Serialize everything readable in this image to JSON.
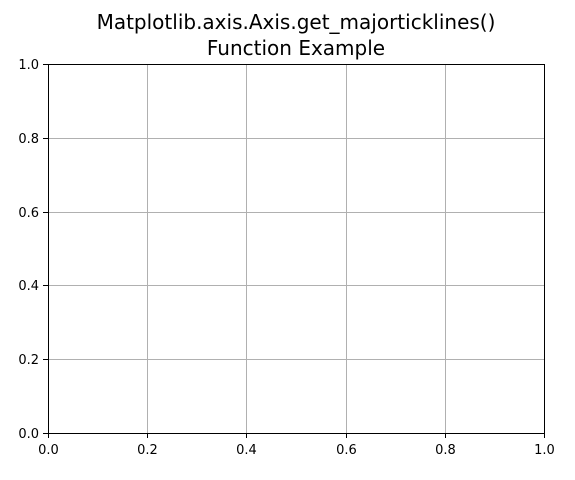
{
  "chart_data": {
    "type": "line",
    "title_lines": [
      "Matplotlib.axis.Axis.get_majorticklines()",
      "Function Example"
    ],
    "xlabel": "",
    "ylabel": "",
    "xlim": [
      0.0,
      1.0
    ],
    "ylim": [
      0.0,
      1.0
    ],
    "x_ticks": [
      0.0,
      0.2,
      0.4,
      0.6,
      0.8,
      1.0
    ],
    "y_ticks": [
      0.0,
      0.2,
      0.4,
      0.6,
      0.8,
      1.0
    ],
    "x_tick_labels": [
      "0.0",
      "0.2",
      "0.4",
      "0.6",
      "0.8",
      "1.0"
    ],
    "y_tick_labels": [
      "0.0",
      "0.2",
      "0.4",
      "0.6",
      "0.8",
      "1.0"
    ],
    "grid": true,
    "series": []
  },
  "colors": {
    "grid": "#b0b0b0",
    "axes": "#000000",
    "background": "#ffffff"
  }
}
